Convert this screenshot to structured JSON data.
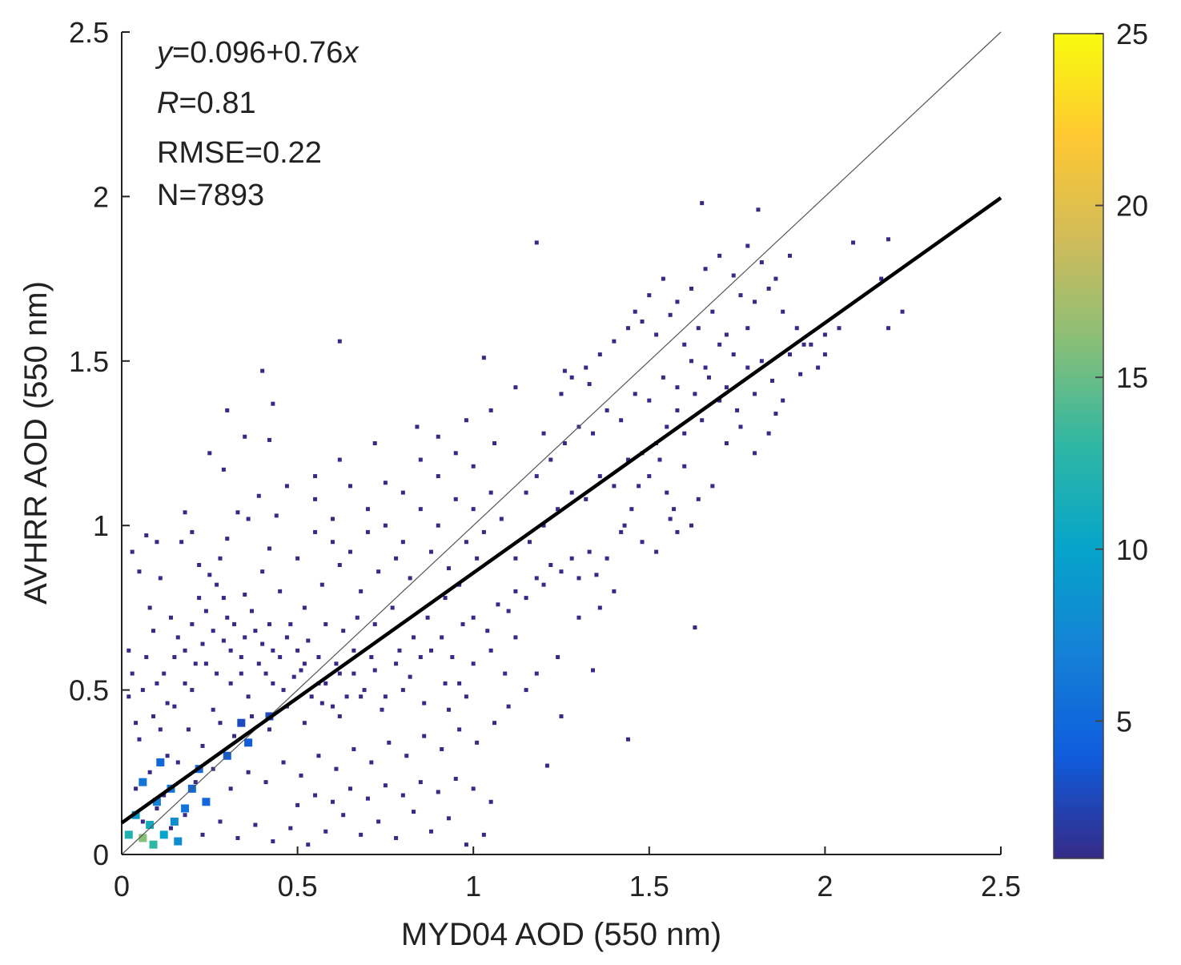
{
  "chart_data": {
    "type": "scatter",
    "subtype": "density-scatter",
    "xlabel": "MYD04 AOD (550 nm)",
    "ylabel": "AVHRR AOD (550 nm)",
    "xlim": [
      0,
      2.5
    ],
    "ylim": [
      0,
      2.5
    ],
    "xticks": [
      0,
      0.5,
      1,
      1.5,
      2,
      2.5
    ],
    "yticks": [
      0,
      0.5,
      1,
      1.5,
      2,
      2.5
    ],
    "xtick_labels": [
      "0",
      "0.5",
      "1",
      "1.5",
      "2",
      "2.5"
    ],
    "ytick_labels": [
      "0",
      "0.5",
      "1",
      "1.5",
      "2",
      "2.5"
    ],
    "grid": false,
    "fit_line": {
      "intercept": 0.096,
      "slope": 0.76
    },
    "identity_line": {
      "from": [
        0,
        0
      ],
      "to": [
        2.5,
        2.5
      ]
    },
    "annotations": {
      "equation": {
        "var_y": "y",
        "mid": "=0.096+0.76",
        "var_x": "x"
      },
      "r": {
        "var": "R",
        "value": "=0.81"
      },
      "rmse": "RMSE=0.22",
      "n": "N=7893"
    },
    "colorbar": {
      "label_values": [
        5,
        10,
        15,
        20,
        25
      ],
      "tick_labels": [
        "5",
        "10",
        "15",
        "20",
        "25"
      ],
      "range": [
        1,
        25
      ],
      "colormap": "parula",
      "colors": [
        "#352a87",
        "#0f5cdd",
        "#1481d6",
        "#06a4ca",
        "#2eb7a4",
        "#87bf77",
        "#d1bb59",
        "#fec832",
        "#f9fb0e"
      ]
    },
    "points": [
      [
        0.03,
        0.92
      ],
      [
        0.05,
        0.86
      ],
      [
        0.07,
        0.97
      ],
      [
        0.02,
        0.62
      ],
      [
        0.08,
        0.75
      ],
      [
        0.11,
        0.84
      ],
      [
        0.14,
        0.72
      ],
      [
        0.17,
        0.95
      ],
      [
        0.2,
        0.98
      ],
      [
        0.22,
        0.88
      ],
      [
        0.25,
        0.85
      ],
      [
        0.28,
        0.9
      ],
      [
        0.3,
        0.96
      ],
      [
        0.33,
        1.04
      ],
      [
        0.36,
        1.02
      ],
      [
        0.39,
        1.09
      ],
      [
        0.42,
        0.93
      ],
      [
        0.44,
        1.03
      ],
      [
        0.22,
        0.78
      ],
      [
        0.27,
        0.82
      ],
      [
        0.3,
        0.72
      ],
      [
        0.35,
        0.79
      ],
      [
        0.4,
        0.86
      ],
      [
        0.45,
        0.8
      ],
      [
        0.5,
        0.9
      ],
      [
        0.55,
        0.98
      ],
      [
        0.6,
        0.95
      ],
      [
        0.65,
        0.92
      ],
      [
        0.7,
        0.98
      ],
      [
        0.75,
        1.0
      ],
      [
        0.8,
        0.95
      ],
      [
        0.85,
        1.05
      ],
      [
        0.9,
        1.0
      ],
      [
        0.95,
        1.08
      ],
      [
        1.0,
        1.05
      ],
      [
        1.05,
        1.1
      ],
      [
        0.52,
        0.75
      ],
      [
        0.57,
        0.82
      ],
      [
        0.62,
        0.88
      ],
      [
        0.68,
        0.8
      ],
      [
        0.73,
        0.86
      ],
      [
        0.78,
        0.9
      ],
      [
        0.82,
        0.84
      ],
      [
        0.88,
        0.92
      ],
      [
        0.93,
        0.87
      ],
      [
        0.98,
        0.95
      ],
      [
        1.03,
        0.98
      ],
      [
        1.08,
        1.02
      ],
      [
        0.12,
        0.55
      ],
      [
        0.18,
        0.62
      ],
      [
        0.24,
        0.58
      ],
      [
        0.29,
        0.65
      ],
      [
        0.34,
        0.6
      ],
      [
        0.38,
        0.68
      ],
      [
        0.43,
        0.62
      ],
      [
        0.48,
        0.7
      ],
      [
        0.53,
        0.65
      ],
      [
        0.58,
        0.7
      ],
      [
        0.63,
        0.68
      ],
      [
        0.67,
        0.72
      ],
      [
        0.72,
        0.7
      ],
      [
        0.77,
        0.75
      ],
      [
        0.15,
        0.45
      ],
      [
        0.2,
        0.5
      ],
      [
        0.26,
        0.44
      ],
      [
        0.31,
        0.52
      ],
      [
        0.36,
        0.48
      ],
      [
        0.41,
        0.55
      ],
      [
        0.46,
        0.5
      ],
      [
        0.51,
        0.56
      ],
      [
        0.56,
        0.52
      ],
      [
        0.61,
        0.58
      ],
      [
        0.66,
        0.55
      ],
      [
        0.71,
        0.6
      ],
      [
        0.05,
        0.35
      ],
      [
        0.09,
        0.42
      ],
      [
        0.13,
        0.3
      ],
      [
        0.19,
        0.38
      ],
      [
        0.23,
        0.33
      ],
      [
        0.28,
        0.4
      ],
      [
        0.32,
        0.36
      ],
      [
        0.37,
        0.42
      ],
      [
        0.42,
        0.38
      ],
      [
        0.47,
        0.45
      ],
      [
        0.52,
        0.4
      ],
      [
        0.57,
        0.46
      ],
      [
        0.62,
        0.42
      ],
      [
        0.68,
        0.48
      ],
      [
        0.74,
        0.44
      ],
      [
        0.8,
        0.5
      ],
      [
        0.86,
        0.46
      ],
      [
        0.92,
        0.52
      ],
      [
        0.98,
        0.48
      ],
      [
        0.04,
        0.2
      ],
      [
        0.08,
        0.25
      ],
      [
        0.12,
        0.18
      ],
      [
        0.16,
        0.28
      ],
      [
        0.21,
        0.22
      ],
      [
        0.26,
        0.26
      ],
      [
        0.31,
        0.2
      ],
      [
        0.36,
        0.25
      ],
      [
        0.41,
        0.22
      ],
      [
        0.46,
        0.28
      ],
      [
        0.51,
        0.24
      ],
      [
        0.56,
        0.3
      ],
      [
        0.61,
        0.26
      ],
      [
        0.66,
        0.32
      ],
      [
        0.71,
        0.28
      ],
      [
        0.76,
        0.34
      ],
      [
        0.81,
        0.3
      ],
      [
        0.86,
        0.36
      ],
      [
        0.91,
        0.32
      ],
      [
        0.96,
        0.38
      ],
      [
        1.01,
        0.34
      ],
      [
        0.06,
        0.1
      ],
      [
        0.1,
        0.14
      ],
      [
        0.14,
        0.08
      ],
      [
        0.18,
        0.12
      ],
      [
        0.23,
        0.06
      ],
      [
        0.28,
        0.1
      ],
      [
        0.33,
        0.05
      ],
      [
        0.38,
        0.09
      ],
      [
        0.43,
        0.04
      ],
      [
        0.48,
        0.08
      ],
      [
        0.53,
        0.03
      ],
      [
        0.58,
        0.07
      ],
      [
        0.63,
        0.12
      ],
      [
        0.68,
        0.06
      ],
      [
        0.73,
        0.1
      ],
      [
        0.78,
        0.05
      ],
      [
        0.83,
        0.13
      ],
      [
        0.88,
        0.07
      ],
      [
        0.93,
        0.11
      ],
      [
        0.98,
        0.03
      ],
      [
        1.03,
        0.06
      ],
      [
        0.5,
        0.15
      ],
      [
        0.55,
        0.18
      ],
      [
        0.6,
        0.16
      ],
      [
        0.65,
        0.2
      ],
      [
        0.7,
        0.17
      ],
      [
        0.75,
        0.21
      ],
      [
        0.8,
        0.18
      ],
      [
        0.85,
        0.22
      ],
      [
        0.9,
        0.19
      ],
      [
        0.95,
        0.23
      ],
      [
        1.0,
        0.2
      ],
      [
        1.05,
        0.16
      ],
      [
        0.02,
        0.48
      ],
      [
        0.03,
        0.55
      ],
      [
        0.04,
        0.4
      ],
      [
        0.06,
        0.5
      ],
      [
        0.07,
        0.6
      ],
      [
        0.09,
        0.68
      ],
      [
        0.1,
        0.52
      ],
      [
        0.11,
        0.38
      ],
      [
        0.13,
        0.46
      ],
      [
        0.15,
        0.6
      ],
      [
        0.16,
        0.66
      ],
      [
        0.18,
        0.52
      ],
      [
        0.2,
        0.7
      ],
      [
        0.21,
        0.58
      ],
      [
        0.23,
        0.64
      ],
      [
        0.24,
        0.74
      ],
      [
        0.26,
        0.68
      ],
      [
        0.27,
        0.55
      ],
      [
        0.29,
        0.78
      ],
      [
        0.31,
        0.62
      ],
      [
        0.32,
        0.7
      ],
      [
        0.34,
        0.55
      ],
      [
        0.35,
        0.66
      ],
      [
        0.37,
        0.74
      ],
      [
        0.39,
        0.58
      ],
      [
        0.4,
        0.64
      ],
      [
        0.42,
        0.7
      ],
      [
        0.43,
        0.52
      ],
      [
        0.45,
        0.6
      ],
      [
        0.47,
        0.66
      ],
      [
        0.49,
        0.54
      ],
      [
        0.5,
        0.62
      ],
      [
        0.52,
        0.58
      ],
      [
        0.54,
        0.48
      ],
      [
        0.56,
        0.6
      ],
      [
        0.58,
        0.52
      ],
      [
        0.6,
        0.45
      ],
      [
        0.62,
        0.55
      ],
      [
        0.64,
        0.48
      ],
      [
        0.66,
        0.62
      ],
      [
        0.69,
        0.5
      ],
      [
        0.72,
        0.56
      ],
      [
        0.75,
        0.48
      ],
      [
        0.78,
        0.58
      ],
      [
        0.82,
        0.54
      ],
      [
        0.85,
        0.6
      ],
      [
        0.88,
        0.62
      ],
      [
        0.91,
        0.66
      ],
      [
        0.94,
        0.6
      ],
      [
        0.97,
        0.7
      ],
      [
        1.0,
        0.72
      ],
      [
        1.04,
        0.68
      ],
      [
        1.07,
        0.76
      ],
      [
        1.1,
        0.74
      ],
      [
        1.12,
        0.8
      ],
      [
        1.15,
        0.78
      ],
      [
        1.18,
        0.84
      ],
      [
        1.2,
        0.82
      ],
      [
        1.22,
        0.88
      ],
      [
        1.25,
        0.86
      ],
      [
        1.28,
        0.9
      ],
      [
        1.3,
        0.84
      ],
      [
        1.33,
        0.92
      ],
      [
        1.12,
        0.9
      ],
      [
        1.16,
        0.95
      ],
      [
        1.2,
        1.0
      ],
      [
        1.24,
        1.05
      ],
      [
        1.28,
        1.1
      ],
      [
        1.32,
        1.08
      ],
      [
        1.36,
        1.15
      ],
      [
        1.4,
        1.12
      ],
      [
        1.44,
        1.2
      ],
      [
        1.48,
        1.22
      ],
      [
        1.52,
        1.25
      ],
      [
        1.15,
        1.1
      ],
      [
        1.18,
        1.15
      ],
      [
        1.22,
        1.2
      ],
      [
        1.26,
        1.25
      ],
      [
        1.3,
        1.3
      ],
      [
        1.34,
        1.28
      ],
      [
        1.38,
        1.35
      ],
      [
        1.42,
        1.32
      ],
      [
        1.46,
        1.4
      ],
      [
        1.5,
        1.38
      ],
      [
        1.54,
        1.45
      ],
      [
        1.58,
        1.42
      ],
      [
        1.62,
        1.5
      ],
      [
        1.66,
        1.48
      ],
      [
        1.7,
        1.55
      ],
      [
        1.74,
        1.52
      ],
      [
        1.78,
        1.6
      ],
      [
        1.25,
        1.4
      ],
      [
        1.28,
        1.45
      ],
      [
        1.32,
        1.48
      ],
      [
        1.36,
        1.52
      ],
      [
        1.4,
        1.56
      ],
      [
        1.44,
        1.6
      ],
      [
        1.48,
        1.62
      ],
      [
        1.52,
        1.58
      ],
      [
        1.56,
        1.64
      ],
      [
        1.6,
        1.55
      ],
      [
        1.64,
        1.6
      ],
      [
        1.68,
        1.65
      ],
      [
        1.72,
        1.58
      ],
      [
        1.76,
        1.7
      ],
      [
        1.8,
        1.68
      ],
      [
        1.84,
        1.72
      ],
      [
        1.88,
        1.65
      ],
      [
        1.92,
        1.6
      ],
      [
        1.96,
        1.55
      ],
      [
        2.0,
        1.58
      ],
      [
        1.55,
        1.3
      ],
      [
        1.58,
        1.35
      ],
      [
        1.6,
        1.28
      ],
      [
        1.63,
        1.4
      ],
      [
        1.65,
        1.32
      ],
      [
        1.67,
        1.45
      ],
      [
        1.7,
        1.38
      ],
      [
        1.72,
        1.42
      ],
      [
        1.75,
        1.35
      ],
      [
        1.78,
        1.48
      ],
      [
        1.8,
        1.4
      ],
      [
        1.82,
        1.5
      ],
      [
        1.85,
        1.44
      ],
      [
        1.88,
        1.38
      ],
      [
        1.9,
        1.52
      ],
      [
        1.5,
        1.15
      ],
      [
        1.53,
        1.2
      ],
      [
        1.55,
        1.1
      ],
      [
        1.57,
        1.05
      ],
      [
        1.6,
        1.18
      ],
      [
        1.62,
        1.0
      ],
      [
        1.64,
        1.08
      ],
      [
        1.45,
        1.05
      ],
      [
        1.47,
        1.12
      ],
      [
        1.43,
        1.0
      ],
      [
        1.48,
        0.95
      ],
      [
        1.52,
        0.92
      ],
      [
        1.56,
        1.02
      ],
      [
        1.58,
        0.98
      ],
      [
        1.68,
        1.12
      ],
      [
        1.72,
        1.25
      ],
      [
        1.76,
        1.3
      ],
      [
        1.8,
        1.22
      ],
      [
        1.84,
        1.28
      ],
      [
        1.86,
        1.34
      ],
      [
        1.46,
        1.65
      ],
      [
        1.5,
        1.7
      ],
      [
        1.54,
        1.75
      ],
      [
        1.58,
        1.68
      ],
      [
        1.62,
        1.72
      ],
      [
        1.66,
        1.78
      ],
      [
        1.7,
        1.82
      ],
      [
        1.74,
        1.76
      ],
      [
        1.78,
        1.85
      ],
      [
        1.82,
        1.8
      ],
      [
        1.86,
        1.75
      ],
      [
        1.9,
        1.82
      ],
      [
        1.65,
        1.98
      ],
      [
        1.81,
        1.96
      ],
      [
        2.08,
        1.86
      ],
      [
        2.18,
        1.87
      ],
      [
        2.22,
        1.65
      ],
      [
        2.18,
        1.6
      ],
      [
        2.16,
        1.75
      ],
      [
        2.0,
        1.52
      ],
      [
        1.98,
        1.48
      ],
      [
        1.94,
        1.55
      ],
      [
        1.18,
        1.86
      ],
      [
        0.62,
        1.56
      ],
      [
        0.4,
        1.47
      ],
      [
        0.43,
        1.37
      ],
      [
        0.3,
        1.35
      ],
      [
        0.35,
        1.27
      ],
      [
        0.42,
        1.26
      ],
      [
        0.25,
        1.22
      ],
      [
        0.29,
        1.17
      ],
      [
        0.18,
        1.04
      ],
      [
        0.1,
        0.95
      ],
      [
        1.03,
        1.51
      ],
      [
        1.2,
        1.28
      ],
      [
        1.26,
        1.47
      ],
      [
        1.33,
        1.43
      ],
      [
        1.0,
        1.18
      ],
      [
        0.95,
        1.22
      ],
      [
        0.9,
        1.15
      ],
      [
        0.85,
        1.2
      ],
      [
        0.8,
        1.1
      ],
      [
        0.75,
        1.13
      ],
      [
        0.7,
        1.05
      ],
      [
        0.65,
        1.12
      ],
      [
        0.6,
        1.02
      ],
      [
        0.55,
        1.08
      ],
      [
        1.63,
        0.69
      ],
      [
        1.44,
        0.35
      ],
      [
        1.21,
        0.27
      ],
      [
        1.25,
        0.42
      ],
      [
        1.34,
        0.56
      ],
      [
        1.3,
        0.72
      ],
      [
        1.24,
        0.6
      ],
      [
        1.18,
        0.55
      ],
      [
        1.15,
        0.5
      ],
      [
        1.1,
        0.45
      ],
      [
        1.06,
        0.4
      ],
      [
        0.62,
        1.2
      ],
      [
        0.55,
        1.15
      ],
      [
        0.47,
        1.12
      ],
      [
        0.72,
        1.25
      ],
      [
        0.84,
        1.3
      ],
      [
        0.9,
        1.27
      ],
      [
        0.98,
        1.32
      ],
      [
        1.05,
        1.35
      ],
      [
        1.12,
        1.42
      ],
      [
        1.06,
        1.25
      ],
      [
        1.01,
        0.9
      ],
      [
        0.96,
        0.82
      ],
      [
        0.92,
        0.78
      ],
      [
        0.87,
        0.72
      ],
      [
        0.83,
        0.66
      ],
      [
        0.79,
        0.62
      ],
      [
        1.4,
        0.8
      ],
      [
        1.36,
        0.75
      ],
      [
        1.35,
        0.85
      ],
      [
        1.38,
        0.9
      ],
      [
        1.42,
        0.98
      ],
      [
        1.93,
        1.46
      ],
      [
        2.04,
        1.6
      ],
      [
        1.0,
        0.58
      ],
      [
        1.05,
        0.62
      ],
      [
        1.09,
        0.55
      ],
      [
        1.12,
        0.66
      ],
      [
        0.96,
        0.52
      ],
      [
        0.93,
        0.44
      ]
    ],
    "dense_cells": [
      {
        "x": 0.06,
        "y": 0.05,
        "count": 16
      },
      {
        "x": 0.09,
        "y": 0.03,
        "count": 13
      },
      {
        "x": 0.08,
        "y": 0.09,
        "count": 11
      },
      {
        "x": 0.12,
        "y": 0.06,
        "count": 10
      },
      {
        "x": 0.04,
        "y": 0.12,
        "count": 9
      },
      {
        "x": 0.15,
        "y": 0.1,
        "count": 8
      },
      {
        "x": 0.1,
        "y": 0.16,
        "count": 7
      },
      {
        "x": 0.18,
        "y": 0.14,
        "count": 6
      },
      {
        "x": 0.14,
        "y": 0.2,
        "count": 6
      },
      {
        "x": 0.2,
        "y": 0.2,
        "count": 5
      },
      {
        "x": 0.24,
        "y": 0.16,
        "count": 5
      },
      {
        "x": 0.22,
        "y": 0.26,
        "count": 5
      },
      {
        "x": 0.3,
        "y": 0.3,
        "count": 4
      },
      {
        "x": 0.36,
        "y": 0.34,
        "count": 4
      },
      {
        "x": 0.34,
        "y": 0.4,
        "count": 3
      },
      {
        "x": 0.42,
        "y": 0.42,
        "count": 3
      },
      {
        "x": 0.06,
        "y": 0.22,
        "count": 6
      },
      {
        "x": 0.11,
        "y": 0.28,
        "count": 5
      },
      {
        "x": 0.02,
        "y": 0.06,
        "count": 12
      },
      {
        "x": 0.16,
        "y": 0.04,
        "count": 8
      }
    ]
  }
}
